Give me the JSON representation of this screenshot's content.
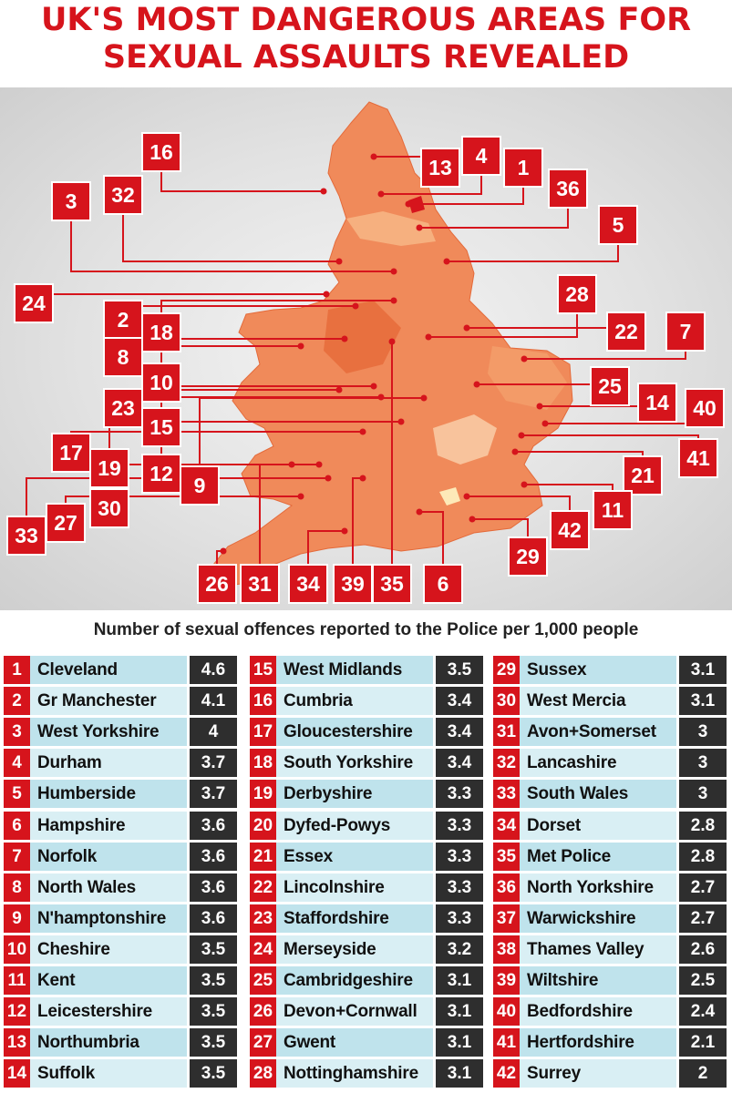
{
  "title_line1": "UK'S MOST DANGEROUS AREAS FOR",
  "title_line2": "SEXUAL ASSAULTS REVEALED",
  "subtitle": "Number of sexual offences reported to the Police per 1,000 people",
  "colors": {
    "accent_red": "#d6141c",
    "value_dark": "#2e2e2e",
    "name_bg": "#bfe3ec",
    "map_orange": "#f07a4a"
  },
  "map_labels": [
    "16",
    "13",
    "4",
    "1",
    "36",
    "3",
    "32",
    "5",
    "24",
    "28",
    "2",
    "18",
    "22",
    "7",
    "8",
    "10",
    "25",
    "14",
    "40",
    "23",
    "15",
    "17",
    "19",
    "12",
    "9",
    "41",
    "21",
    "11",
    "30",
    "33",
    "27",
    "42",
    "29",
    "26",
    "31",
    "34",
    "39",
    "35",
    "6"
  ],
  "rows": [
    {
      "rank": "1",
      "name": "Cleveland",
      "value": "4.6"
    },
    {
      "rank": "2",
      "name": "Gr Manchester",
      "value": "4.1"
    },
    {
      "rank": "3",
      "name": "West Yorkshire",
      "value": "4"
    },
    {
      "rank": "4",
      "name": "Durham",
      "value": "3.7"
    },
    {
      "rank": "5",
      "name": "Humberside",
      "value": "3.7"
    },
    {
      "rank": "6",
      "name": "Hampshire",
      "value": "3.6"
    },
    {
      "rank": "7",
      "name": "Norfolk",
      "value": "3.6"
    },
    {
      "rank": "8",
      "name": "North Wales",
      "value": "3.6"
    },
    {
      "rank": "9",
      "name": "N'hamptonshire",
      "value": "3.6"
    },
    {
      "rank": "10",
      "name": "Cheshire",
      "value": "3.5"
    },
    {
      "rank": "11",
      "name": "Kent",
      "value": "3.5"
    },
    {
      "rank": "12",
      "name": "Leicestershire",
      "value": "3.5"
    },
    {
      "rank": "13",
      "name": "Northumbria",
      "value": "3.5"
    },
    {
      "rank": "14",
      "name": "Suffolk",
      "value": "3.5"
    },
    {
      "rank": "15",
      "name": "West Midlands",
      "value": "3.5"
    },
    {
      "rank": "16",
      "name": "Cumbria",
      "value": "3.4"
    },
    {
      "rank": "17",
      "name": "Gloucestershire",
      "value": "3.4"
    },
    {
      "rank": "18",
      "name": "South Yorkshire",
      "value": "3.4"
    },
    {
      "rank": "19",
      "name": "Derbyshire",
      "value": "3.3"
    },
    {
      "rank": "20",
      "name": "Dyfed-Powys",
      "value": "3.3"
    },
    {
      "rank": "21",
      "name": "Essex",
      "value": "3.3"
    },
    {
      "rank": "22",
      "name": "Lincolnshire",
      "value": "3.3"
    },
    {
      "rank": "23",
      "name": "Staffordshire",
      "value": "3.3"
    },
    {
      "rank": "24",
      "name": "Merseyside",
      "value": "3.2"
    },
    {
      "rank": "25",
      "name": "Cambridgeshire",
      "value": "3.1"
    },
    {
      "rank": "26",
      "name": "Devon+Cornwall",
      "value": "3.1"
    },
    {
      "rank": "27",
      "name": "Gwent",
      "value": "3.1"
    },
    {
      "rank": "28",
      "name": "Nottinghamshire",
      "value": "3.1"
    },
    {
      "rank": "29",
      "name": "Sussex",
      "value": "3.1"
    },
    {
      "rank": "30",
      "name": "West Mercia",
      "value": "3.1"
    },
    {
      "rank": "31",
      "name": "Avon+Somerset",
      "value": "3"
    },
    {
      "rank": "32",
      "name": "Lancashire",
      "value": "3"
    },
    {
      "rank": "33",
      "name": "South Wales",
      "value": "3"
    },
    {
      "rank": "34",
      "name": "Dorset",
      "value": "2.8"
    },
    {
      "rank": "35",
      "name": "Met Police",
      "value": "2.8"
    },
    {
      "rank": "36",
      "name": "North Yorkshire",
      "value": "2.7"
    },
    {
      "rank": "37",
      "name": "Warwickshire",
      "value": "2.7"
    },
    {
      "rank": "38",
      "name": "Thames Valley",
      "value": "2.6"
    },
    {
      "rank": "39",
      "name": "Wiltshire",
      "value": "2.5"
    },
    {
      "rank": "40",
      "name": "Bedfordshire",
      "value": "2.4"
    },
    {
      "rank": "41",
      "name": "Hertfordshire",
      "value": "2.1"
    },
    {
      "rank": "42",
      "name": "Surrey",
      "value": "2"
    }
  ]
}
